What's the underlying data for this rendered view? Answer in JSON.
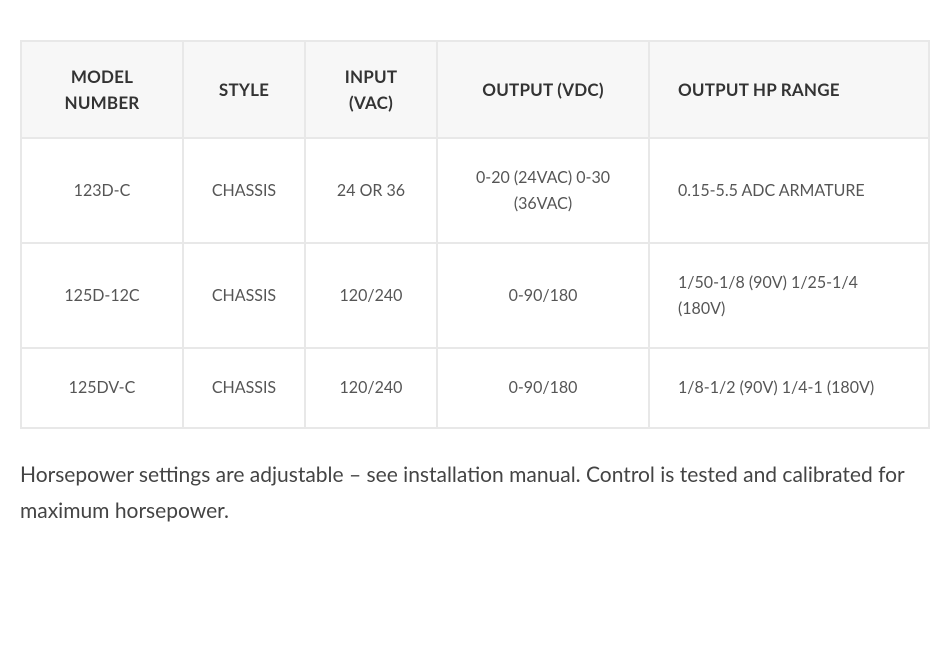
{
  "table": {
    "columns": [
      {
        "key": "model",
        "label": "MODEL NUMBER",
        "class": "col-model"
      },
      {
        "key": "style",
        "label": "STYLE",
        "class": "col-style"
      },
      {
        "key": "input",
        "label": "INPUT (VAC)",
        "class": "col-input"
      },
      {
        "key": "output",
        "label": "OUTPUT (VDC)",
        "class": "col-output"
      },
      {
        "key": "hp",
        "label": "OUTPUT HP RANGE",
        "class": "col-hp-th"
      }
    ],
    "rows": [
      {
        "model": "123D-C",
        "style": "CHASSIS",
        "input": "24 OR 36",
        "output": "0-20 (24VAC) 0-30 (36VAC)",
        "hp": "0.15-5.5 ADC ARMATURE"
      },
      {
        "model": "125D-12C",
        "style": "CHASSIS",
        "input": "120/240",
        "output": "0-90/180",
        "hp": "1/50-1/8 (90V) 1/25-1/4 (180V)"
      },
      {
        "model": "125DV-C",
        "style": "CHASSIS",
        "input": "120/240",
        "output": "0-90/180",
        "hp": "1/8-1/2 (90V) 1/4-1 (180V)"
      }
    ],
    "header_bg": "#f7f7f7",
    "cell_bg": "#ffffff",
    "border_color": "#e8e8e8",
    "header_fontsize": 17,
    "cell_fontsize": 16,
    "text_color": "#555555",
    "header_text_color": "#333333"
  },
  "caption": "Horsepower settings are adjustable – see installation manual. Control is tested and calibrated for maximum horsepower.",
  "caption_fontsize": 21,
  "caption_color": "#444444",
  "page_bg": "#ffffff"
}
